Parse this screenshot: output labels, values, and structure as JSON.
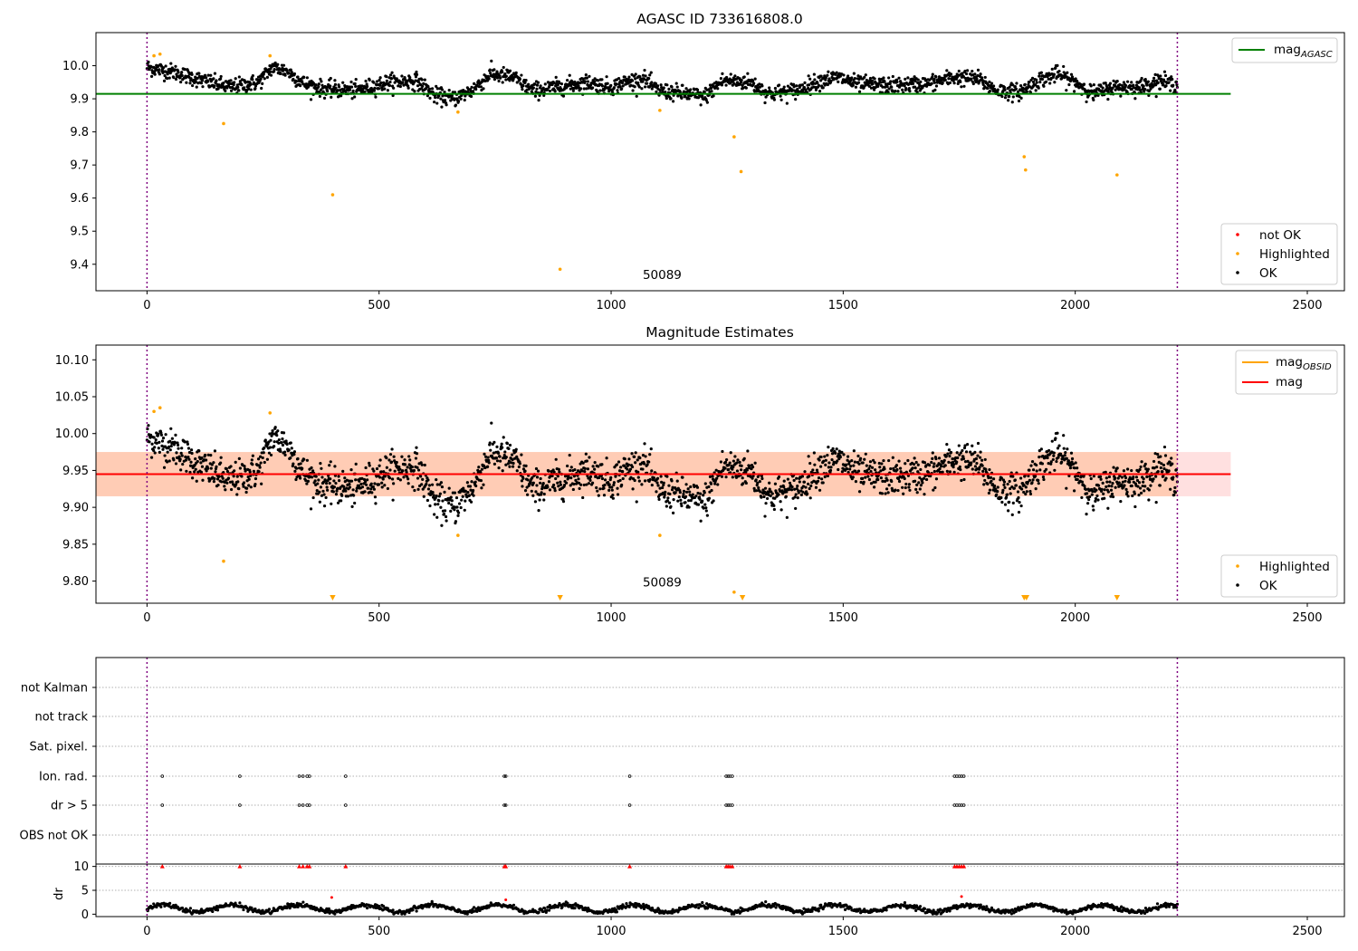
{
  "figure_title": "AGASC ID 733616808.0",
  "chart_data": [
    {
      "type": "scatter",
      "title": "AGASC ID 733616808.0",
      "xlabel": "",
      "ylabel": "",
      "xlim": [
        -110,
        2580
      ],
      "ylim": [
        9.32,
        10.1
      ],
      "x_ticks": [
        0,
        500,
        1000,
        1500,
        2000,
        2500
      ],
      "y_ticks": [
        9.4,
        9.5,
        9.6,
        9.7,
        9.8,
        9.9,
        10.0
      ],
      "y_tick_labels": [
        "9.4",
        "9.5",
        "9.6",
        "9.7",
        "9.8",
        "9.9",
        "10.0"
      ],
      "vlines": [
        0,
        2220
      ],
      "hline": {
        "value": 9.915,
        "x_range": [
          -110,
          2335
        ],
        "color": "#008000"
      },
      "annotation": {
        "text": "50089",
        "x": 1110,
        "y": 9.355
      },
      "legend_lines": {
        "position": "top-right",
        "entries": [
          {
            "label_main": "mag",
            "label_sub": "AGASC",
            "color": "#008000"
          }
        ]
      },
      "legend_points": {
        "position": "bottom-right",
        "entries": [
          {
            "label": "not OK",
            "color": "#ff0000"
          },
          {
            "label": "Highlighted",
            "color": "#ffa500"
          },
          {
            "label": "OK",
            "color": "#000000"
          }
        ]
      },
      "highlighted": [
        {
          "x": 15,
          "y": 10.03
        },
        {
          "x": 28,
          "y": 10.035
        },
        {
          "x": 165,
          "y": 9.825
        },
        {
          "x": 265,
          "y": 10.03
        },
        {
          "x": 400,
          "y": 9.61
        },
        {
          "x": 670,
          "y": 9.86
        },
        {
          "x": 890,
          "y": 9.385
        },
        {
          "x": 1105,
          "y": 9.865
        },
        {
          "x": 1265,
          "y": 9.785
        },
        {
          "x": 1280,
          "y": 9.68
        },
        {
          "x": 1890,
          "y": 9.725
        },
        {
          "x": 1893,
          "y": 9.685
        },
        {
          "x": 2090,
          "y": 9.67
        }
      ],
      "ok_series": {
        "x_range": [
          0,
          2220
        ],
        "count": 2200,
        "baseline": 9.945,
        "noise": 0.022,
        "trend_knots": [
          [
            0,
            0.05
          ],
          [
            60,
            0.035
          ],
          [
            120,
            0.01
          ],
          [
            180,
            -0.01
          ],
          [
            240,
            0.005
          ],
          [
            270,
            0.05
          ],
          [
            300,
            0.04
          ],
          [
            340,
            0.0
          ],
          [
            380,
            -0.015
          ],
          [
            450,
            -0.02
          ],
          [
            520,
            0.005
          ],
          [
            580,
            0.01
          ],
          [
            620,
            -0.035
          ],
          [
            660,
            -0.045
          ],
          [
            700,
            -0.02
          ],
          [
            740,
            0.03
          ],
          [
            790,
            0.02
          ],
          [
            830,
            -0.02
          ],
          [
            880,
            -0.01
          ],
          [
            950,
            0.005
          ],
          [
            1000,
            -0.01
          ],
          [
            1030,
            0.005
          ],
          [
            1070,
            0.015
          ],
          [
            1100,
            -0.02
          ],
          [
            1160,
            -0.03
          ],
          [
            1200,
            -0.04
          ],
          [
            1240,
            0.01
          ],
          [
            1300,
            0.005
          ],
          [
            1340,
            -0.03
          ],
          [
            1400,
            -0.02
          ],
          [
            1450,
            0.01
          ],
          [
            1490,
            0.02
          ],
          [
            1530,
            0.0
          ],
          [
            1600,
            -0.005
          ],
          [
            1680,
            0.0
          ],
          [
            1740,
            0.02
          ],
          [
            1790,
            0.015
          ],
          [
            1830,
            -0.02
          ],
          [
            1880,
            -0.025
          ],
          [
            1920,
            0.01
          ],
          [
            1960,
            0.03
          ],
          [
            2000,
            0.005
          ],
          [
            2040,
            -0.03
          ],
          [
            2080,
            -0.01
          ],
          [
            2140,
            -0.01
          ],
          [
            2180,
            0.01
          ],
          [
            2220,
            -0.005
          ]
        ]
      }
    },
    {
      "type": "scatter",
      "title": "Magnitude Estimates",
      "xlabel": "",
      "ylabel": "",
      "xlim": [
        -110,
        2580
      ],
      "ylim": [
        9.77,
        10.12
      ],
      "x_ticks": [
        0,
        500,
        1000,
        1500,
        2000,
        2500
      ],
      "y_ticks": [
        9.8,
        9.85,
        9.9,
        9.95,
        10.0,
        10.05,
        10.1
      ],
      "y_tick_labels": [
        "9.80",
        "9.85",
        "9.90",
        "9.95",
        "10.00",
        "10.05",
        "10.10"
      ],
      "vlines": [
        0,
        2220
      ],
      "band": {
        "low": 9.915,
        "high": 9.975,
        "x_range": [
          -110,
          2335
        ],
        "color": "#ff9999"
      },
      "band_inner": {
        "low": 9.915,
        "high": 9.975,
        "x_range": [
          -110,
          2220
        ],
        "color": "#ffb380"
      },
      "hline": {
        "value": 9.945,
        "x_range": [
          -110,
          2335
        ],
        "color": "#ff0000"
      },
      "mag_obsid_segments": [
        [
          -110,
          9.945
        ],
        [
          2220,
          9.945
        ]
      ],
      "annotation": {
        "text": "50089",
        "x": 1110,
        "y": 9.793
      },
      "legend_lines": {
        "position": "top-right",
        "entries": [
          {
            "label_main": "mag",
            "label_sub": "OBSID",
            "color": "#ffa500"
          },
          {
            "label_main": "mag",
            "label_sub": "",
            "color": "#ff0000"
          }
        ]
      },
      "legend_points": {
        "position": "bottom-right",
        "entries": [
          {
            "label": "Highlighted",
            "color": "#ffa500"
          },
          {
            "label": "OK",
            "color": "#000000"
          }
        ]
      },
      "highlighted": [
        {
          "x": 15,
          "y": 10.03
        },
        {
          "x": 28,
          "y": 10.035
        },
        {
          "x": 165,
          "y": 9.827
        },
        {
          "x": 265,
          "y": 10.028
        },
        {
          "x": 670,
          "y": 9.862
        },
        {
          "x": 1105,
          "y": 9.862
        },
        {
          "x": 1265,
          "y": 9.785
        }
      ],
      "below_markers_x": [
        400,
        890,
        1283,
        1890,
        1895,
        2090
      ]
    },
    {
      "type": "scatter",
      "title": "",
      "xlabel": "",
      "ylabel": "",
      "xlim": [
        -110,
        2580
      ],
      "categories": [
        "not Kalman",
        "not track",
        "Sat. pixel.",
        "Ion. rad.",
        "dr > 5",
        "OBS not OK"
      ],
      "flag_points": {
        "Ion. rad.": [
          33,
          200,
          328,
          336,
          345,
          350,
          428,
          770,
          773,
          1040,
          1248,
          1252,
          1256,
          1261,
          1740,
          1745,
          1750,
          1755,
          1760
        ],
        "dr > 5": [
          33,
          200,
          328,
          336,
          345,
          350,
          428,
          770,
          773,
          1040,
          1248,
          1252,
          1256,
          1261,
          1740,
          1745,
          1750,
          1755,
          1760
        ]
      },
      "vlines": [
        0,
        2220
      ]
    },
    {
      "type": "scatter",
      "title": "",
      "xlabel": "",
      "ylabel": "dr",
      "xlim": [
        -110,
        2580
      ],
      "ylim": [
        -0.5,
        10.5
      ],
      "x_ticks": [
        0,
        500,
        1000,
        1500,
        2000,
        2500
      ],
      "y_ticks": [
        0,
        5,
        10
      ],
      "y_tick_labels": [
        "0",
        "5",
        "10"
      ],
      "vlines": [
        0,
        2220
      ],
      "clipped_markers_x": [
        33,
        200,
        328,
        336,
        345,
        350,
        428,
        770,
        773,
        1040,
        1248,
        1252,
        1256,
        1261,
        1740,
        1745,
        1750,
        1755,
        1760
      ],
      "outliers": [
        {
          "x": 398,
          "y": 3.5
        },
        {
          "x": 773,
          "y": 3.0
        },
        {
          "x": 1755,
          "y": 3.7
        }
      ],
      "dr_series": {
        "x_range": [
          0,
          2220
        ],
        "count": 1400,
        "baseline": 1.2,
        "amplitude": 0.9
      }
    }
  ]
}
